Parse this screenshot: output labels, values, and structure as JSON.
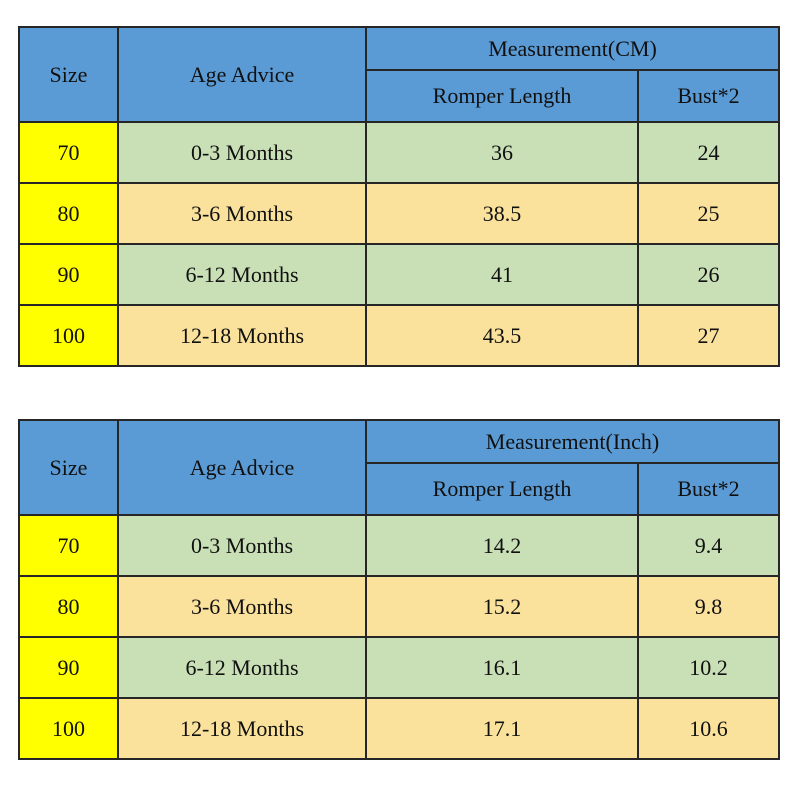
{
  "page": {
    "background": "#ffffff"
  },
  "colors": {
    "header_blue": "#5b9bd5",
    "size_column_yellow": "#ffff00",
    "row_green": "#c9dfb6",
    "row_tan": "#fbe29c",
    "border": "#262626",
    "text": "#101010"
  },
  "chart_data": [
    {
      "type": "table",
      "title": "Measurement(CM)",
      "header": {
        "size": "Size",
        "age": "Age Advice",
        "measurement": "Measurement(CM)",
        "romper": "Romper Length",
        "bust": "Bust*2"
      },
      "rows": [
        {
          "size": "70",
          "age": "0-3 Months",
          "romper_length": "36",
          "bust_x2": "24"
        },
        {
          "size": "80",
          "age": "3-6 Months",
          "romper_length": "38.5",
          "bust_x2": "25"
        },
        {
          "size": "90",
          "age": "6-12 Months",
          "romper_length": "41",
          "bust_x2": "26"
        },
        {
          "size": "100",
          "age": "12-18 Months",
          "romper_length": "43.5",
          "bust_x2": "27"
        }
      ]
    },
    {
      "type": "table",
      "title": "Measurement(Inch)",
      "header": {
        "size": "Size",
        "age": "Age Advice",
        "measurement": "Measurement(Inch)",
        "romper": "Romper Length",
        "bust": "Bust*2"
      },
      "rows": [
        {
          "size": "70",
          "age": "0-3 Months",
          "romper_length": "14.2",
          "bust_x2": "9.4"
        },
        {
          "size": "80",
          "age": "3-6 Months",
          "romper_length": "15.2",
          "bust_x2": "9.8"
        },
        {
          "size": "90",
          "age": "6-12 Months",
          "romper_length": "16.1",
          "bust_x2": "10.2"
        },
        {
          "size": "100",
          "age": "12-18 Months",
          "romper_length": "17.1",
          "bust_x2": "10.6"
        }
      ]
    }
  ]
}
